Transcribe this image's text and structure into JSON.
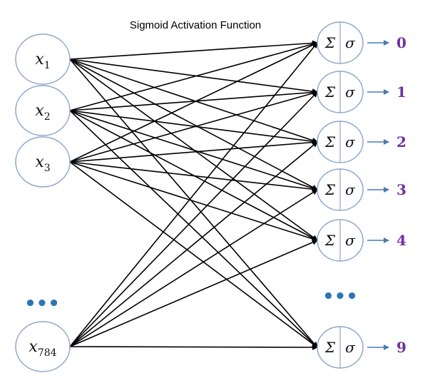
{
  "title": "Sigmoid Activation Function",
  "inputs": [
    {
      "base": "x",
      "sub": "1"
    },
    {
      "base": "x",
      "sub": "2"
    },
    {
      "base": "x",
      "sub": "3"
    },
    {
      "base": "x",
      "sub": "784"
    }
  ],
  "outputs": [
    "0",
    "1",
    "2",
    "3",
    "4",
    "9"
  ],
  "node_symbols": {
    "sum": "Σ",
    "activation": "σ"
  },
  "ellipsis": "•••",
  "colors": {
    "node_border": "#8ea6cc",
    "edges": "#000000",
    "output_arrow": "#4a7ab5",
    "output_labels": "#7030a0",
    "ellipsis": "#2e75b6"
  }
}
